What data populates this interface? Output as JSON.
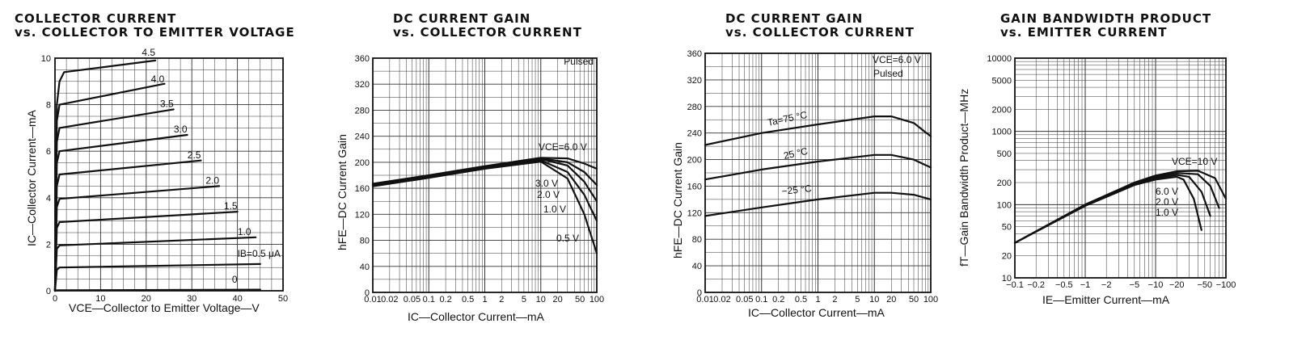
{
  "charts": [
    {
      "title_line1": "COLLECTOR CURRENT",
      "title_line2": "vs. COLLECTOR TO EMITTER VOLTAGE",
      "xlabel": "VCE—Collector to Emitter Voltage—V",
      "ylabel": "IC—Collector Current—mA",
      "annotations": [
        "4.5",
        "4.0",
        "3.5",
        "3.0",
        "2.5",
        "2.0",
        "1.5",
        "1.0",
        "IB=0.5 μA",
        "0"
      ]
    },
    {
      "title_line1": "DC CURRENT GAIN",
      "title_line2": "vs. COLLECTOR CURRENT",
      "xlabel": "IC—Collector Current—mA",
      "ylabel": "hFE—DC Current Gain",
      "annotations": [
        "Pulsed",
        "VCE=6.0 V",
        "3.0 V",
        "2.0 V",
        "1.0 V",
        "0.5 V"
      ]
    },
    {
      "title_line1": "DC CURRENT GAIN",
      "title_line2": "vs. COLLECTOR CURRENT",
      "xlabel": "IC—Collector Current—mA",
      "ylabel": "hFE—DC Current Gain",
      "annotations": [
        "VCE=6.0 V",
        "Pulsed",
        "Ta=75 °C",
        "25 °C",
        "−25 °C"
      ]
    },
    {
      "title_line1": "GAIN BANDWIDTH PRODUCT",
      "title_line2": "vs. EMITTER CURRENT",
      "xlabel": "IE—Emitter Current—mA",
      "ylabel": "fT—Gain Bandwidth Product—MHz",
      "annotations": [
        "VCE=10 V",
        "6.0 V",
        "2.0 V",
        "1.0 V"
      ]
    }
  ],
  "chart_data": [
    {
      "type": "line",
      "title": "COLLECTOR CURRENT vs. COLLECTOR TO EMITTER VOLTAGE",
      "xlabel": "VCE—Collector to Emitter Voltage—V",
      "ylabel": "IC—Collector Current—mA",
      "xlim": [
        0,
        50
      ],
      "ylim": [
        0,
        10
      ],
      "xticks": [
        0,
        10,
        20,
        30,
        40,
        50
      ],
      "yticks": [
        0,
        2,
        4,
        6,
        8,
        10
      ],
      "grid": true,
      "series": [
        {
          "name": "0",
          "x": [
            0,
            0.5,
            45
          ],
          "y": [
            0,
            0.02,
            0.05
          ]
        },
        {
          "name": "IB=0.5 μA",
          "x": [
            0,
            0.4,
            1,
            45
          ],
          "y": [
            0,
            0.9,
            1.0,
            1.15
          ]
        },
        {
          "name": "1.0",
          "x": [
            0,
            0.4,
            1,
            44
          ],
          "y": [
            0,
            1.8,
            1.95,
            2.3
          ]
        },
        {
          "name": "1.5",
          "x": [
            0,
            0.4,
            1,
            40
          ],
          "y": [
            0,
            2.7,
            2.95,
            3.4
          ]
        },
        {
          "name": "2.0",
          "x": [
            0,
            0.4,
            1,
            36
          ],
          "y": [
            0,
            3.6,
            3.95,
            4.5
          ]
        },
        {
          "name": "2.5",
          "x": [
            0,
            0.4,
            1,
            32
          ],
          "y": [
            0,
            4.5,
            5.0,
            5.6
          ]
        },
        {
          "name": "3.0",
          "x": [
            0,
            0.4,
            1,
            29
          ],
          "y": [
            0,
            5.5,
            6.0,
            6.7
          ]
        },
        {
          "name": "3.5",
          "x": [
            0,
            0.4,
            1,
            26
          ],
          "y": [
            0,
            6.4,
            7.0,
            7.8
          ]
        },
        {
          "name": "4.0",
          "x": [
            0,
            0.4,
            1,
            24
          ],
          "y": [
            0,
            7.3,
            8.0,
            8.9
          ]
        },
        {
          "name": "4.5",
          "x": [
            0,
            0.4,
            1,
            2,
            22
          ],
          "y": [
            0,
            8.0,
            9.0,
            9.4,
            9.9
          ]
        }
      ]
    },
    {
      "type": "line",
      "title": "DC CURRENT GAIN vs. COLLECTOR CURRENT",
      "xlabel": "IC—Collector Current—mA",
      "ylabel": "hFE—DC Current Gain",
      "xscale": "log",
      "xlim": [
        0.01,
        100
      ],
      "ylim": [
        0,
        360
      ],
      "xticks": [
        0.01,
        0.02,
        0.05,
        0.1,
        0.2,
        0.5,
        1,
        2,
        5,
        10,
        20,
        50,
        100
      ],
      "yticks": [
        0,
        40,
        80,
        120,
        160,
        200,
        240,
        280,
        320,
        360
      ],
      "grid": true,
      "note": "Pulsed",
      "series": [
        {
          "name": "VCE=6.0 V",
          "x": [
            0.01,
            0.1,
            1,
            10,
            30,
            60,
            100
          ],
          "y": [
            167,
            180,
            194,
            207,
            206,
            198,
            190
          ]
        },
        {
          "name": "3.0 V",
          "x": [
            0.01,
            0.1,
            1,
            10,
            30,
            60,
            100
          ],
          "y": [
            166,
            179,
            193,
            206,
            200,
            185,
            165
          ]
        },
        {
          "name": "2.0 V",
          "x": [
            0.01,
            0.1,
            1,
            10,
            30,
            60,
            100
          ],
          "y": [
            165,
            178,
            192,
            205,
            195,
            170,
            140
          ]
        },
        {
          "name": "1.0 V",
          "x": [
            0.01,
            0.1,
            1,
            10,
            30,
            60,
            100
          ],
          "y": [
            164,
            177,
            191,
            203,
            185,
            150,
            110
          ]
        },
        {
          "name": "0.5 V",
          "x": [
            0.01,
            0.1,
            1,
            10,
            30,
            60,
            100
          ],
          "y": [
            163,
            176,
            190,
            201,
            175,
            120,
            60
          ]
        }
      ]
    },
    {
      "type": "line",
      "title": "DC CURRENT GAIN vs. COLLECTOR CURRENT",
      "xlabel": "IC—Collector Current—mA",
      "ylabel": "hFE—DC Current Gain",
      "xscale": "log",
      "xlim": [
        0.01,
        100
      ],
      "ylim": [
        0,
        360
      ],
      "xticks": [
        0.01,
        0.02,
        0.05,
        0.1,
        0.2,
        0.5,
        1,
        2,
        5,
        10,
        20,
        50,
        100
      ],
      "yticks": [
        0,
        40,
        80,
        120,
        160,
        200,
        240,
        280,
        320,
        360
      ],
      "grid": true,
      "note": "VCE=6.0 V Pulsed",
      "series": [
        {
          "name": "Ta=75 °C",
          "x": [
            0.01,
            0.1,
            1,
            10,
            20,
            50,
            100
          ],
          "y": [
            222,
            240,
            253,
            265,
            265,
            255,
            235
          ]
        },
        {
          "name": "25 °C",
          "x": [
            0.01,
            0.1,
            1,
            10,
            20,
            50,
            100
          ],
          "y": [
            170,
            185,
            197,
            207,
            207,
            200,
            188
          ]
        },
        {
          "name": "−25 °C",
          "x": [
            0.01,
            0.1,
            1,
            10,
            20,
            50,
            100
          ],
          "y": [
            115,
            128,
            140,
            150,
            150,
            147,
            140
          ]
        }
      ]
    },
    {
      "type": "line",
      "title": "GAIN BANDWIDTH PRODUCT vs. EMITTER CURRENT",
      "xlabel": "IE—Emitter Current—mA",
      "ylabel": "fT—Gain Bandwidth Product—MHz",
      "xscale": "log",
      "yscale": "log",
      "xlim": [
        -0.1,
        -100
      ],
      "ylim": [
        10,
        10000
      ],
      "xticks": [
        -0.1,
        -0.2,
        -0.5,
        -1,
        -2,
        -5,
        -10,
        -20,
        -50,
        -100
      ],
      "yticks": [
        10,
        20,
        50,
        100,
        200,
        500,
        1000,
        2000,
        5000,
        10000
      ],
      "grid": true,
      "series": [
        {
          "name": "VCE=10 V",
          "x": [
            -0.1,
            -1,
            -5,
            -10,
            -20,
            -40,
            -70,
            -100
          ],
          "y": [
            30,
            100,
            200,
            250,
            285,
            290,
            230,
            120
          ]
        },
        {
          "name": "6.0 V",
          "x": [
            -0.1,
            -1,
            -5,
            -10,
            -20,
            -40,
            -60,
            -80
          ],
          "y": [
            30,
            100,
            195,
            240,
            270,
            260,
            180,
            90
          ]
        },
        {
          "name": "2.0 V",
          "x": [
            -0.1,
            -1,
            -5,
            -10,
            -20,
            -30,
            -45,
            -60
          ],
          "y": [
            30,
            98,
            190,
            230,
            255,
            240,
            150,
            70
          ]
        },
        {
          "name": "1.0 V",
          "x": [
            -0.1,
            -1,
            -5,
            -10,
            -20,
            -25,
            -35,
            -45
          ],
          "y": [
            30,
            96,
            185,
            220,
            240,
            220,
            120,
            45
          ]
        }
      ]
    }
  ]
}
